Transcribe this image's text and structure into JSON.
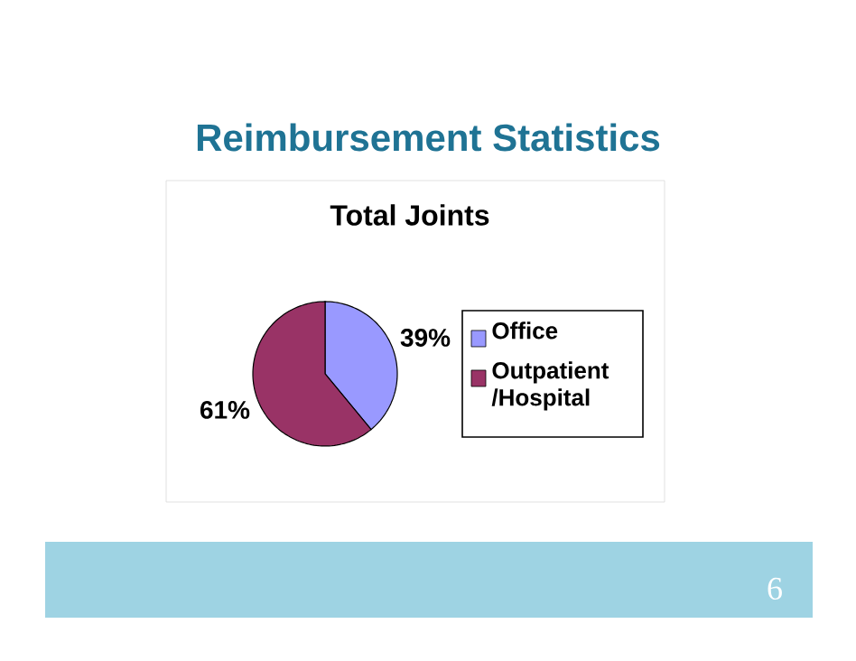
{
  "chart_data": {
    "type": "pie",
    "title": "Reimbursement Statistics",
    "subtitle": "Total Joints",
    "categories": [
      "Office",
      "Outpatient /Hospital"
    ],
    "values": [
      39,
      61
    ],
    "colors": [
      "#9999ff",
      "#993366"
    ],
    "value_labels": [
      "39%",
      "61%"
    ],
    "legend": "right",
    "annotations": [
      "6"
    ]
  }
}
